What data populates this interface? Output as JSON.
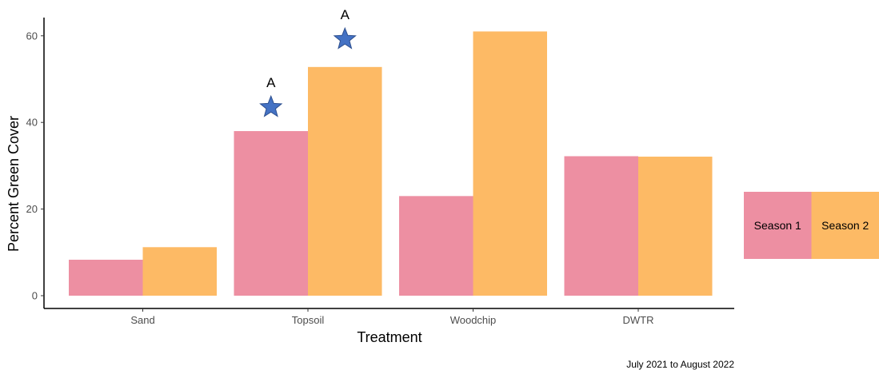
{
  "chart_data": {
    "type": "bar",
    "xlabel": "Treatment",
    "ylabel": "Percent Green Cover",
    "ylim": [
      0,
      65
    ],
    "yticks": [
      0,
      20,
      40,
      60
    ],
    "categories": [
      "Sand",
      "Topsoil",
      "Woodchip",
      "DWTR"
    ],
    "series": [
      {
        "name": "Season 1",
        "values": [
          8.3,
          38.0,
          23.0,
          32.2
        ],
        "color": "#ED8FA2"
      },
      {
        "name": "Season 2",
        "values": [
          11.2,
          52.8,
          61.0,
          32.1
        ],
        "color": "#FDBA65"
      }
    ],
    "annotations": [
      {
        "category": "Topsoil",
        "series": "Season 1",
        "y": 43.5,
        "marker": "star",
        "label": "A"
      },
      {
        "category": "Topsoil",
        "series": "Season 2",
        "y": 59.2,
        "marker": "star",
        "label": "A"
      }
    ],
    "star_color": "#4472C4",
    "caption": "July 2021 to August 2022",
    "legend_position": "right",
    "grid": false
  }
}
